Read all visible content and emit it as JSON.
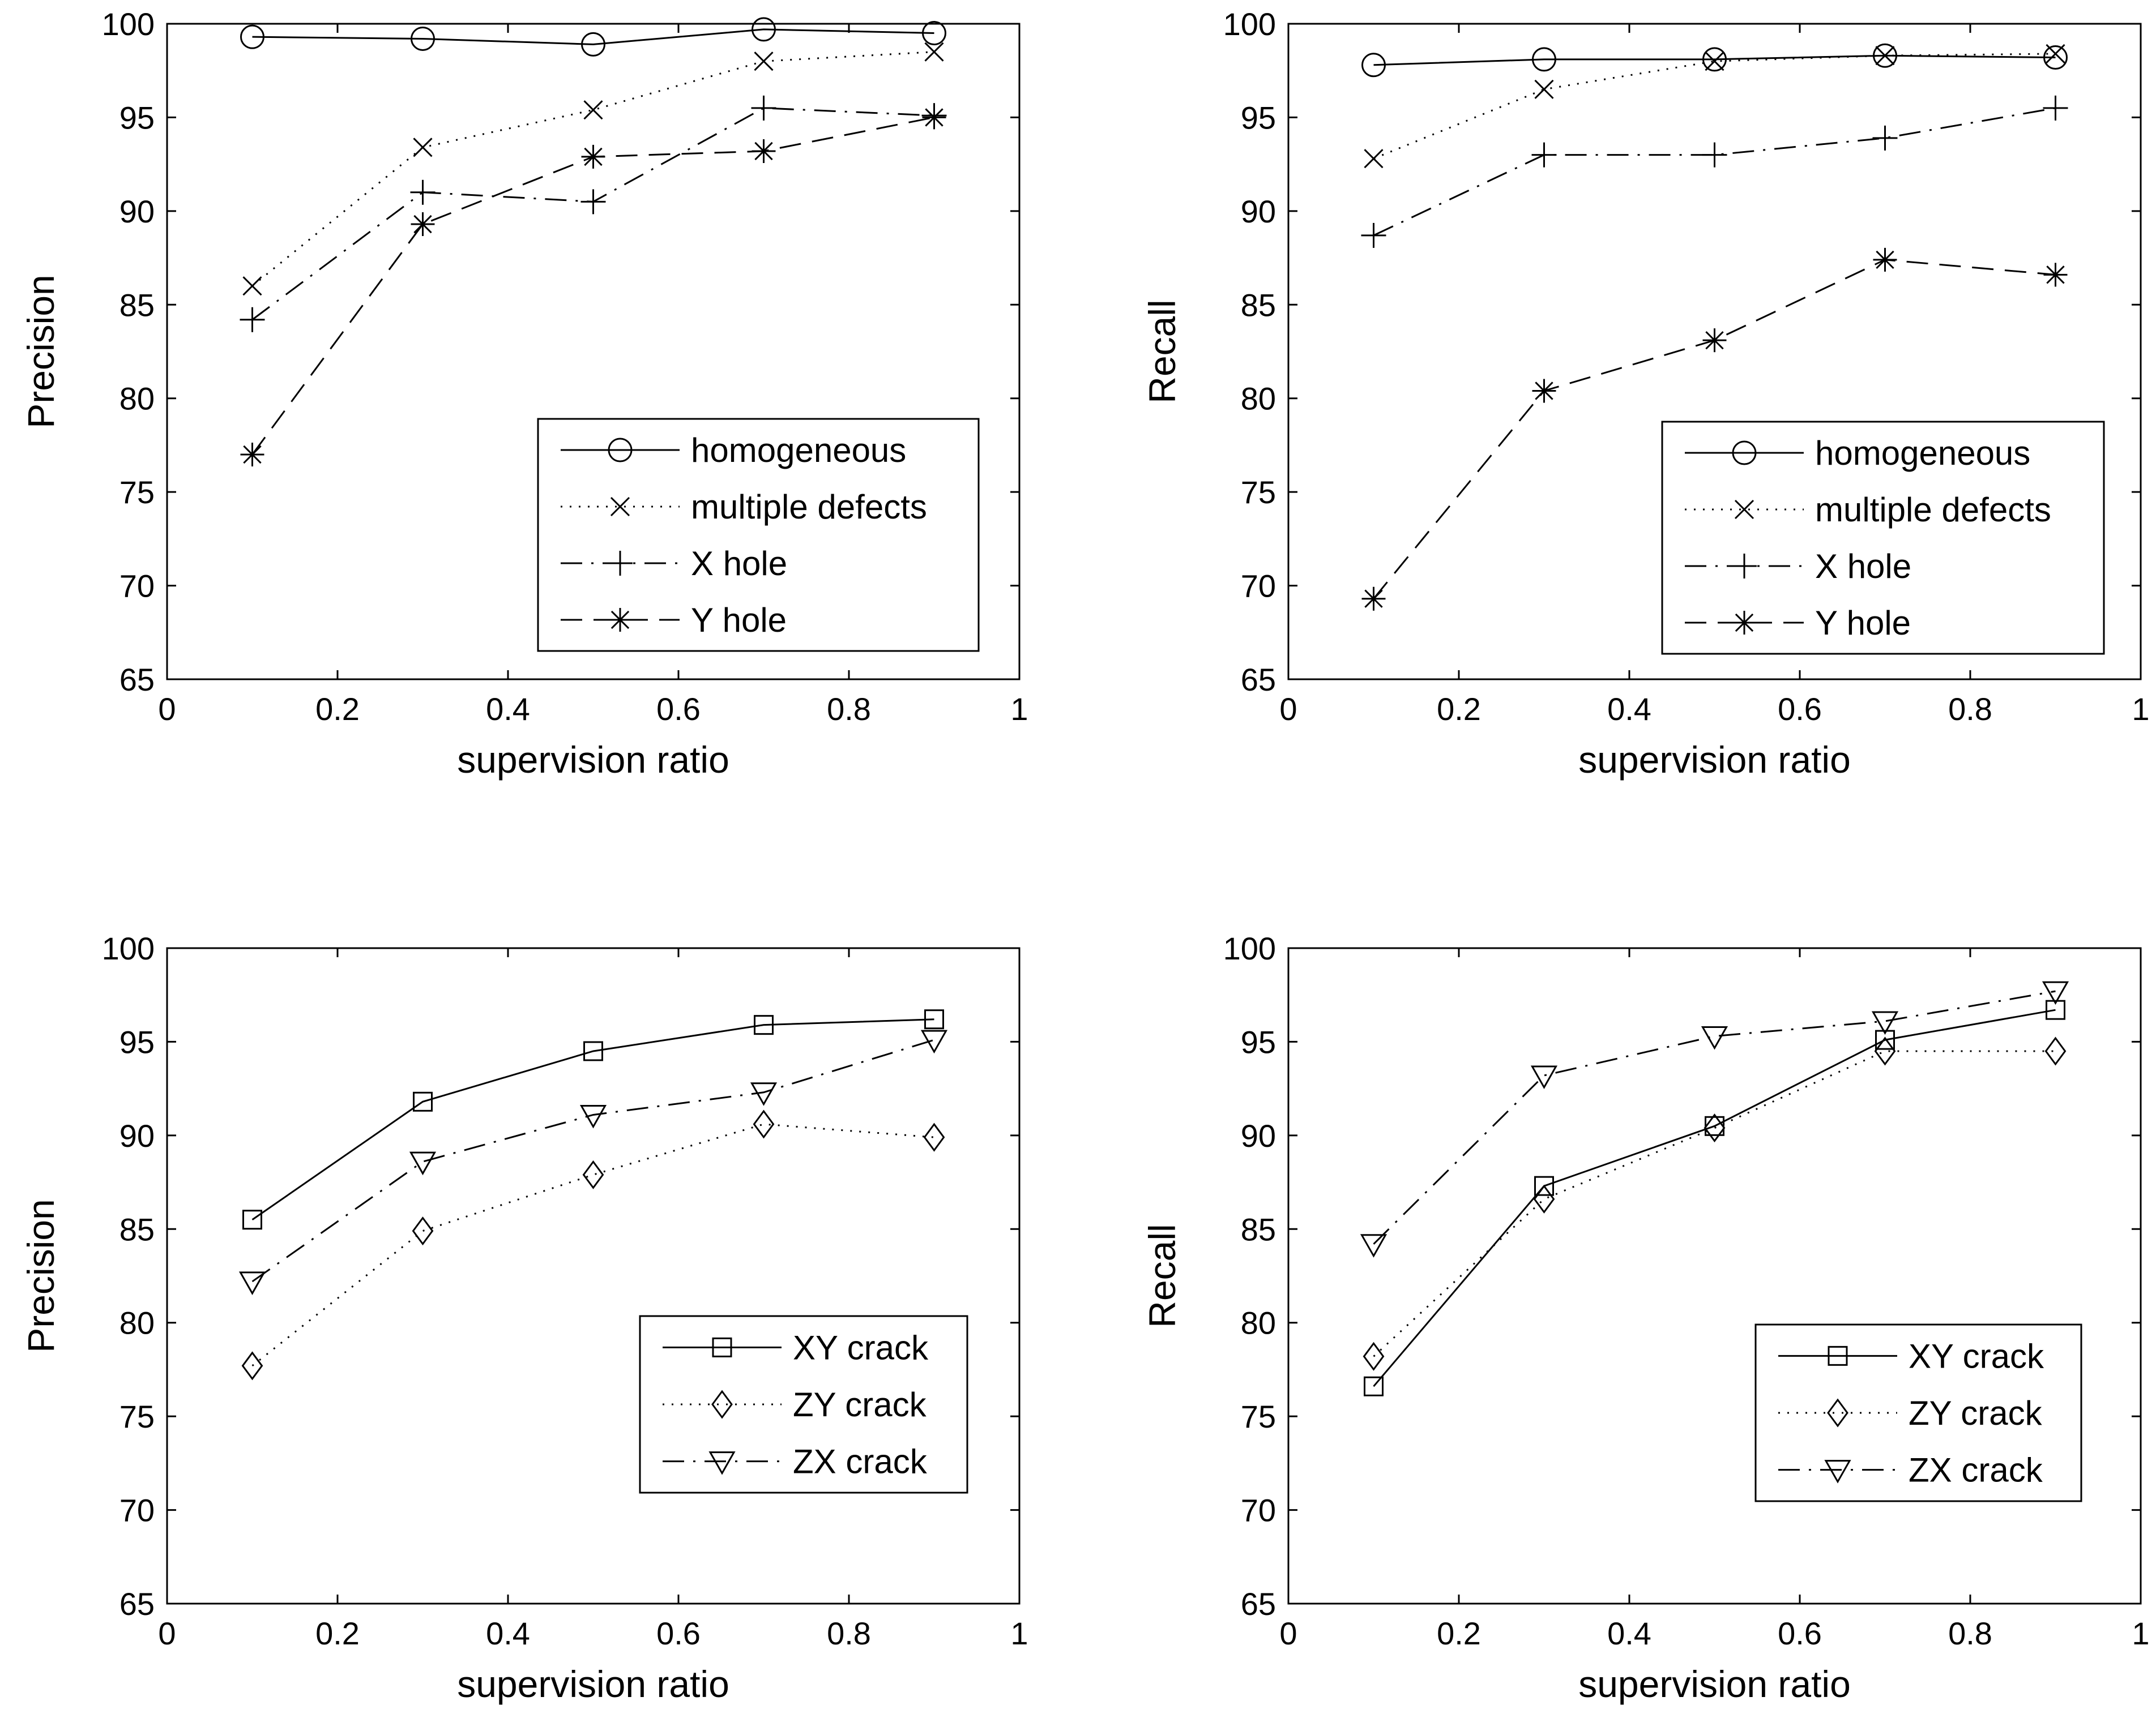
{
  "colors": {
    "background": "#ffffff",
    "ink": "#000000"
  },
  "chart_data": [
    {
      "type": "line",
      "title": "",
      "xlabel": "supervision ratio",
      "ylabel": "Precision",
      "xlim": [
        0,
        1
      ],
      "ylim": [
        65,
        100
      ],
      "x_ticks": [
        0,
        0.2,
        0.4,
        0.6,
        0.8,
        1
      ],
      "x_tick_labels": [
        "0",
        "0.2",
        "0.4",
        "0.6",
        "0.8",
        "1"
      ],
      "y_ticks": [
        65,
        70,
        75,
        80,
        85,
        90,
        95,
        100
      ],
      "y_tick_labels": [
        "65",
        "70",
        "75",
        "80",
        "85",
        "90",
        "95",
        "100"
      ],
      "grid": false,
      "legend_position": "bottom-right",
      "x": [
        0.1,
        0.3,
        0.5,
        0.7,
        0.9
      ],
      "series": [
        {
          "name": "homogeneous",
          "line_style": "solid",
          "marker": "circle",
          "values": [
            99.3,
            99.2,
            98.9,
            99.7,
            99.5
          ]
        },
        {
          "name": "multiple defects",
          "line_style": "dotted",
          "marker": "x",
          "values": [
            86.0,
            93.4,
            95.4,
            98.0,
            98.5
          ]
        },
        {
          "name": "X hole",
          "line_style": "dashdot",
          "marker": "plus",
          "values": [
            84.2,
            91.0,
            90.5,
            95.5,
            95.1
          ]
        },
        {
          "name": "Y hole",
          "line_style": "dashed",
          "marker": "star",
          "values": [
            77.0,
            89.3,
            92.9,
            93.2,
            95.0
          ]
        }
      ]
    },
    {
      "type": "line",
      "title": "",
      "xlabel": "supervision ratio",
      "ylabel": "Recall",
      "xlim": [
        0,
        1
      ],
      "ylim": [
        65,
        100
      ],
      "x_ticks": [
        0,
        0.2,
        0.4,
        0.6,
        0.8,
        1
      ],
      "x_tick_labels": [
        "0",
        "0.2",
        "0.4",
        "0.6",
        "0.8",
        "1"
      ],
      "y_ticks": [
        65,
        70,
        75,
        80,
        85,
        90,
        95,
        100
      ],
      "y_tick_labels": [
        "65",
        "70",
        "75",
        "80",
        "85",
        "90",
        "95",
        "100"
      ],
      "grid": false,
      "legend_position": "bottom-right",
      "x": [
        0.1,
        0.3,
        0.5,
        0.7,
        0.9
      ],
      "series": [
        {
          "name": "homogeneous",
          "line_style": "solid",
          "marker": "circle",
          "values": [
            97.8,
            98.1,
            98.1,
            98.3,
            98.2
          ]
        },
        {
          "name": "multiple defects",
          "line_style": "dotted",
          "marker": "x",
          "values": [
            92.8,
            96.5,
            98.0,
            98.3,
            98.4
          ]
        },
        {
          "name": "X hole",
          "line_style": "dashdot",
          "marker": "plus",
          "values": [
            88.7,
            93.0,
            93.0,
            93.9,
            95.5
          ]
        },
        {
          "name": "Y hole",
          "line_style": "dashed",
          "marker": "star",
          "values": [
            69.3,
            80.4,
            83.1,
            87.4,
            86.6
          ]
        }
      ]
    },
    {
      "type": "line",
      "title": "",
      "xlabel": "supervision ratio",
      "ylabel": "Precision",
      "xlim": [
        0,
        1
      ],
      "ylim": [
        65,
        100
      ],
      "x_ticks": [
        0,
        0.2,
        0.4,
        0.6,
        0.8,
        1
      ],
      "x_tick_labels": [
        "0",
        "0.2",
        "0.4",
        "0.6",
        "0.8",
        "1"
      ],
      "y_ticks": [
        65,
        70,
        75,
        80,
        85,
        90,
        95,
        100
      ],
      "y_tick_labels": [
        "65",
        "70",
        "75",
        "80",
        "85",
        "90",
        "95",
        "100"
      ],
      "grid": false,
      "legend_position": "bottom-right",
      "x": [
        0.1,
        0.3,
        0.5,
        0.7,
        0.9
      ],
      "series": [
        {
          "name": "XY crack",
          "line_style": "solid",
          "marker": "square",
          "values": [
            85.5,
            91.8,
            94.5,
            95.9,
            96.2
          ]
        },
        {
          "name": "ZY crack",
          "line_style": "dotted",
          "marker": "diamond",
          "values": [
            77.7,
            84.9,
            87.9,
            90.6,
            89.9
          ]
        },
        {
          "name": "ZX crack",
          "line_style": "dashdot",
          "marker": "triangle-down",
          "values": [
            82.2,
            88.6,
            91.1,
            92.3,
            95.1
          ]
        }
      ]
    },
    {
      "type": "line",
      "title": "",
      "xlabel": "supervision ratio",
      "ylabel": "Recall",
      "xlim": [
        0,
        1
      ],
      "ylim": [
        65,
        100
      ],
      "x_ticks": [
        0,
        0.2,
        0.4,
        0.6,
        0.8,
        1
      ],
      "x_tick_labels": [
        "0",
        "0.2",
        "0.4",
        "0.6",
        "0.8",
        "1"
      ],
      "y_ticks": [
        65,
        70,
        75,
        80,
        85,
        90,
        95,
        100
      ],
      "y_tick_labels": [
        "65",
        "70",
        "75",
        "80",
        "85",
        "90",
        "95",
        "100"
      ],
      "grid": false,
      "legend_position": "bottom-right",
      "x": [
        0.1,
        0.3,
        0.5,
        0.7,
        0.9
      ],
      "series": [
        {
          "name": "XY crack",
          "line_style": "solid",
          "marker": "square",
          "values": [
            76.6,
            87.3,
            90.5,
            95.1,
            96.7
          ]
        },
        {
          "name": "ZY crack",
          "line_style": "dotted",
          "marker": "diamond",
          "values": [
            78.2,
            86.6,
            90.4,
            94.5,
            94.5
          ]
        },
        {
          "name": "ZX crack",
          "line_style": "dashdot",
          "marker": "triangle-down",
          "values": [
            84.2,
            93.2,
            95.3,
            96.1,
            97.7
          ]
        }
      ]
    }
  ]
}
